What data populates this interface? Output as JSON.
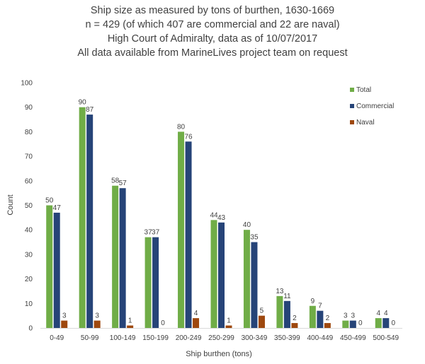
{
  "chart_data": {
    "type": "bar",
    "title_lines": [
      "Ship size as measured by tons of burthen, 1630-1669",
      "n = 429 (of which 407 are commercial and 22 are naval)",
      "High Court of Admiralty, data as of 10/07/2017",
      "All data available from MarineLives project team on request"
    ],
    "xlabel": "Ship burthen (tons)",
    "ylabel": "Count",
    "ylim": [
      0,
      100
    ],
    "yticks": [
      0,
      10,
      20,
      30,
      40,
      50,
      60,
      70,
      80,
      90,
      100
    ],
    "grid": false,
    "legend_position": "top-right",
    "categories": [
      "0-49",
      "50-99",
      "100-149",
      "150-199",
      "200-249",
      "250-299",
      "300-349",
      "350-399",
      "400-449",
      "450-499",
      "500-549"
    ],
    "series": [
      {
        "name": "Total",
        "color": "#70ad47",
        "values": [
          50,
          90,
          58,
          37,
          80,
          44,
          40,
          13,
          9,
          3,
          4
        ]
      },
      {
        "name": "Commercial",
        "color": "#264478",
        "values": [
          47,
          87,
          57,
          37,
          76,
          43,
          35,
          11,
          7,
          3,
          4
        ]
      },
      {
        "name": "Naval",
        "color": "#9e480e",
        "values": [
          3,
          3,
          1,
          0,
          4,
          1,
          5,
          2,
          2,
          0,
          0
        ]
      }
    ]
  }
}
